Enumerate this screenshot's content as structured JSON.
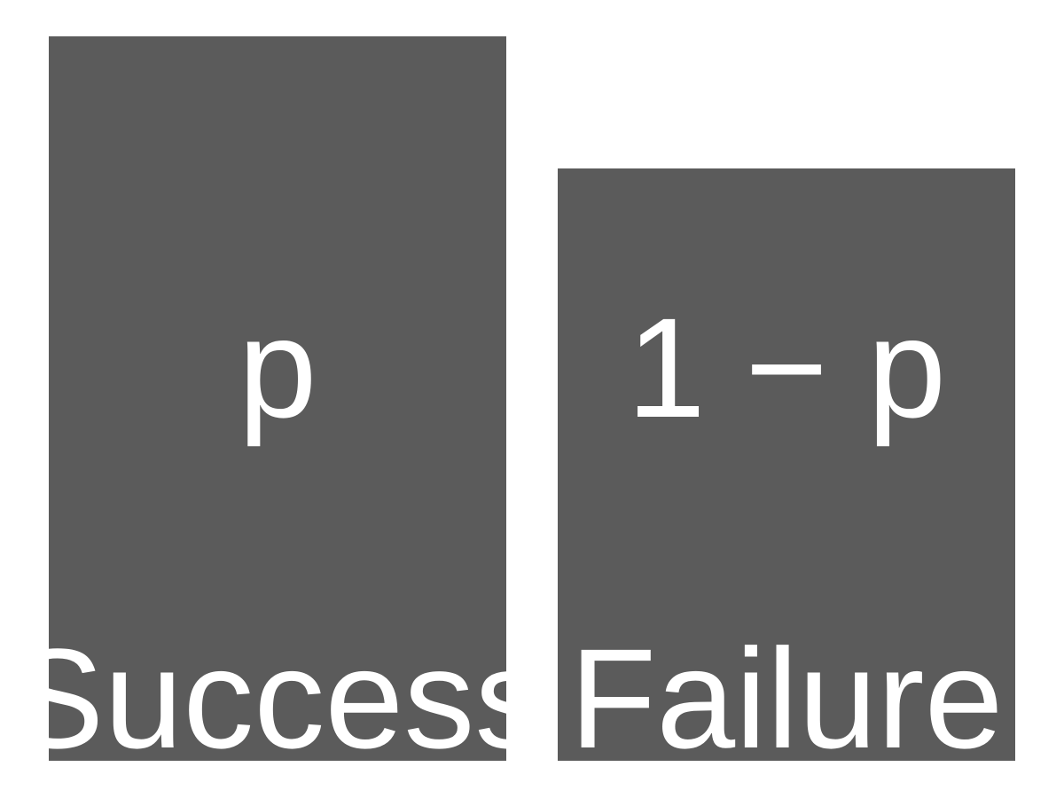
{
  "chart_data": {
    "type": "bar",
    "categories": [
      "Success",
      "Failure"
    ],
    "value_labels": [
      "p",
      "1 − p"
    ],
    "colors": {
      "bar": "#5b5b5b",
      "label_text": "#ffffff",
      "background": "#ffffff"
    }
  }
}
